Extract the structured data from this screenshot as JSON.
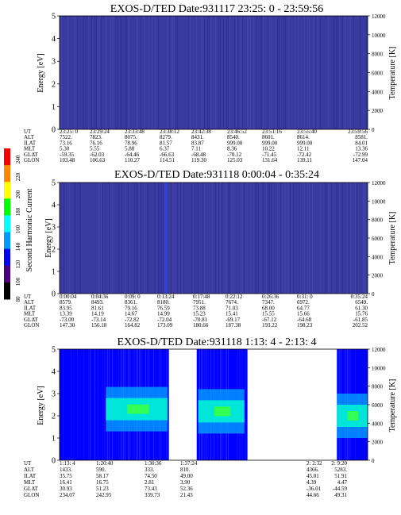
{
  "colorbar": {
    "label": "Second Harmonic Current",
    "ticks": [
      "240",
      "220",
      "200",
      "180",
      "160",
      "140",
      "120",
      "100",
      "80"
    ],
    "colors": [
      "#ff0000",
      "#ff8800",
      "#ffff00",
      "#00ff00",
      "#00ffff",
      "#0099ff",
      "#0000ff",
      "#4b0082",
      "#000000"
    ]
  },
  "chart_data": [
    {
      "type": "heatmap",
      "title": "EXOS-D/TED   Date:931117  23:25: 0 - 23:59:56",
      "ylabel": "Energy [eV]",
      "y2label": "Temperature [K]",
      "ylim": [
        0,
        5
      ],
      "y2lim": [
        0,
        12000
      ],
      "yticks": [
        "0",
        "1",
        "2",
        "3",
        "4",
        "5"
      ],
      "y2ticks": [
        "0",
        "2000",
        "4000",
        "6000",
        "8000",
        "10000",
        "12000"
      ],
      "background_color": "#3a3aa0",
      "data_gaps": [],
      "bright_bands": [],
      "orbit_table": {
        "row_labels": [
          "UT",
          "ALT",
          "ILAT",
          "MLT",
          "GLAT",
          "GLON"
        ],
        "columns": [
          [
            "23:25: 0",
            "7522.",
            "73.16",
            "5.30",
            "-59.35",
            "103.48"
          ],
          [
            "23:29:24",
            "7823.",
            "76.16",
            "5.55",
            "-62.03",
            "106.63"
          ],
          [
            "23:33:48",
            "8075.",
            "78.96",
            "5.88",
            "-64.46",
            "110.27"
          ],
          [
            "23:38:12",
            "8279.",
            "81.57",
            "6.37",
            "-66.63",
            "114.51"
          ],
          [
            "23:42:38",
            "8431.",
            "83.87",
            "7.11",
            "-68.48",
            "119.30"
          ],
          [
            "23:46:52",
            "8540.",
            "999.00",
            "8.36",
            "-70.12",
            "125.03"
          ],
          [
            "23:51:16",
            "8601.",
            "999.00",
            "10.22",
            "-71.45",
            "131.64"
          ],
          [
            "23:55:40",
            "8614.",
            "999.00",
            "12.11",
            "-72.42",
            "139.11"
          ],
          [
            "23:59:56",
            "8581.",
            "84.01",
            "13.36",
            "-72.99",
            "147.04"
          ]
        ]
      }
    },
    {
      "type": "heatmap",
      "title": "EXOS-D/TED   Date:931118  0:00:04 - 0:35:24",
      "ylabel": "Energy [eV]",
      "y2label": "Temperature [K]",
      "ylim": [
        0,
        5
      ],
      "y2lim": [
        0,
        12000
      ],
      "yticks": [
        "0",
        "1",
        "2",
        "3",
        "4",
        "5"
      ],
      "y2ticks": [
        "0",
        "2000",
        "4000",
        "6000",
        "8000",
        "10000",
        "12000"
      ],
      "background_color": "#3a3aa0",
      "data_gaps": [],
      "bright_bands": [],
      "orbit_table": {
        "row_labels": [
          "UT",
          "ALT",
          "ILAT",
          "MLT",
          "GLAT",
          "GLON"
        ],
        "columns": [
          [
            "0:00:04",
            "8579.",
            "83.95",
            "13.39",
            "-73.00",
            "147.30"
          ],
          [
            "0:04:36",
            "8493.",
            "81.61",
            "14.19",
            "-73.14",
            "156.18"
          ],
          [
            "0:09: 0",
            "8361.",
            "79.16",
            "14.67",
            "-72.82",
            "164.82"
          ],
          [
            "0:13:24",
            "8180.",
            "76.59",
            "14.99",
            "-72.04",
            "173.09"
          ],
          [
            "0:17:48",
            "7951.",
            "73.88",
            "15.23",
            "-70.81",
            "180.66"
          ],
          [
            "0:22:12",
            "7674.",
            "71.03",
            "15.41",
            "-69.17",
            "187.38"
          ],
          [
            "0:26:36",
            "7347.",
            "68.00",
            "15.55",
            "-67.12",
            "193.22"
          ],
          [
            "0:31: 0",
            "6972.",
            "64.77",
            "15.66",
            "-64.68",
            "198.23"
          ],
          [
            "0:35:24",
            "6549.",
            "61.30",
            "15.76",
            "-61.85",
            "202.52"
          ]
        ]
      }
    },
    {
      "type": "heatmap",
      "title": "EXOS-D/TED   Date:931118  1:13: 4 - 2:13: 4",
      "ylabel": "Energy [eV]",
      "y2label": "Temperature [K]",
      "ylim": [
        0,
        5
      ],
      "y2lim": [
        0,
        12000
      ],
      "yticks": [
        "0",
        "1",
        "2",
        "3",
        "4",
        "5"
      ],
      "y2ticks": [
        "0",
        "2000",
        "4000",
        "6000",
        "8000",
        "10000",
        "12000"
      ],
      "background_color": "#0000ff",
      "data_gaps": [
        [
          0.355,
          0.445
        ],
        [
          0.61,
          0.9
        ]
      ],
      "bright_bands": [
        {
          "x_range": [
            0.15,
            0.35
          ],
          "energy": 2.3
        },
        {
          "x_range": [
            0.45,
            0.6
          ],
          "energy": 2.2
        },
        {
          "x_range": [
            0.9,
            1.0
          ],
          "energy": 2.0
        }
      ],
      "orbit_table": {
        "row_labels": [
          "UT",
          "ALT",
          "ILAT",
          "MLT",
          "GLAT",
          "GLON"
        ],
        "columns": [
          [
            "1:13: 4",
            "1433.",
            "35.75",
            "16.41",
            "30.93",
            "234.07"
          ],
          [
            "1:20:40",
            "590.",
            "58.17",
            "16.75",
            "51.23",
            "242.95"
          ],
          [
            "1:30:36",
            "333.",
            "74.50",
            "2.81",
            "73.43",
            "339.73"
          ],
          [
            "1:37:24",
            "810.",
            "49.00",
            "3.90",
            "52.36",
            "21.43"
          ],
          [
            "2: 2:32",
            "4366.",
            "45.01",
            "4.39",
            "-36.01",
            "44.66"
          ],
          [
            "2: 9:20",
            "5283.",
            "51.91",
            "4.47",
            "-44.59",
            "49.31"
          ]
        ]
      }
    }
  ]
}
